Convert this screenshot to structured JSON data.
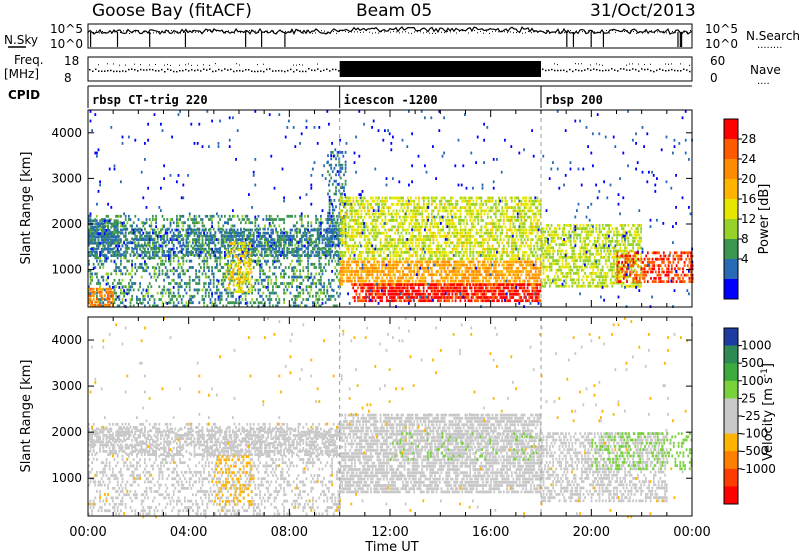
{
  "header": {
    "station": "Goose Bay (fitACF)",
    "beam": "Beam 05",
    "date": "31/Oct/2013"
  },
  "nsky_panel": {
    "left_label": "N.Sky",
    "left_ticks": [
      "10^5",
      "10^0"
    ],
    "right_ticks": [
      "10^5",
      "10^0"
    ],
    "right_label": "N.Search",
    "right_legend": "........"
  },
  "freq_panel": {
    "left_label_1": "Freq.",
    "left_label_2": "[MHz]",
    "left_ticks": [
      "18",
      "8"
    ],
    "right_ticks": [
      "60",
      "0"
    ],
    "right_label": "Nave",
    "right_legend": "...."
  },
  "cpid_panel": {
    "label": "CPID",
    "programs": [
      {
        "name": "rbsp CT-trig 220",
        "start_hour": 0
      },
      {
        "name": "icescon -1200",
        "start_hour": 10
      },
      {
        "name": "rbsp 200",
        "start_hour": 18
      }
    ]
  },
  "power_colorbar": {
    "label": "Power [dB]",
    "ticks": [
      "28",
      "24",
      "20",
      "16",
      "12",
      "8",
      "4"
    ],
    "colors": [
      "#ff0000",
      "#ff5a00",
      "#ff8c00",
      "#ffb400",
      "#e6e600",
      "#96d228",
      "#3c9650",
      "#286ab4",
      "#0000ff"
    ]
  },
  "velocity_colorbar": {
    "label": "Velocity [m s",
    "label_sup": "-1",
    "label_end": "]",
    "ticks": [
      "1000",
      "500",
      "100",
      "25",
      "-25",
      "-100",
      "-500",
      "-1000"
    ],
    "colors": [
      "#1e3ca0",
      "#2d8a55",
      "#3caa3c",
      "#78d23c",
      "#c8c8c8",
      "#c8c8c8",
      "#ffb400",
      "#ff8000",
      "#ff3c00",
      "#ff0000"
    ]
  },
  "chart_data": [
    {
      "type": "heatmap",
      "quantity": "Power",
      "ylabel": "Slant Range [km]",
      "yticks": [
        "1000",
        "2000",
        "3000",
        "4000"
      ],
      "ylim": [
        180,
        4500
      ],
      "xlim": [
        0,
        24
      ],
      "xticks": [
        "00:00",
        "04:00",
        "08:00",
        "12:00",
        "16:00",
        "20:00",
        "00:00"
      ],
      "scale_min": 0,
      "scale_max": 30,
      "regions": [
        {
          "t": [
            0.0,
            10.0
          ],
          "r": [
            200,
            2200
          ],
          "level": 8,
          "density": 0.35
        },
        {
          "t": [
            0.0,
            10.0
          ],
          "r": [
            1300,
            1900
          ],
          "level": 6,
          "density": 0.55
        },
        {
          "t": [
            0.0,
            1.2
          ],
          "r": [
            1600,
            2100
          ],
          "level": 6,
          "density": 0.85
        },
        {
          "t": [
            0.0,
            1.0
          ],
          "r": [
            200,
            600
          ],
          "level": 22,
          "density": 0.6
        },
        {
          "t": [
            5.5,
            6.5
          ],
          "r": [
            500,
            1600
          ],
          "level": 16,
          "density": 0.45
        },
        {
          "t": [
            9.5,
            10.2
          ],
          "r": [
            1500,
            3600
          ],
          "level": 6,
          "density": 0.4
        },
        {
          "t": [
            10.0,
            18.0
          ],
          "r": [
            1200,
            2600
          ],
          "level": 14,
          "density": 0.6
        },
        {
          "t": [
            10.0,
            18.0
          ],
          "r": [
            700,
            1200
          ],
          "level": 20,
          "density": 0.7
        },
        {
          "t": [
            10.5,
            18.0
          ],
          "r": [
            300,
            700
          ],
          "level": 28,
          "density": 0.75
        },
        {
          "t": [
            18.0,
            22.0
          ],
          "r": [
            600,
            2000
          ],
          "level": 13,
          "density": 0.6
        },
        {
          "t": [
            21.0,
            24.0
          ],
          "r": [
            700,
            1400
          ],
          "level": 26,
          "density": 0.5
        },
        {
          "t": [
            0.0,
            24.0
          ],
          "r": [
            180,
            4500
          ],
          "level": 3,
          "density": 0.02
        }
      ],
      "colorbar_label": "Power [dB]"
    },
    {
      "type": "heatmap",
      "quantity": "Velocity",
      "ylabel": "Slant Range [km]",
      "xlabel": "Time UT",
      "yticks": [
        "1000",
        "2000",
        "3000",
        "4000"
      ],
      "ylim": [
        180,
        4500
      ],
      "xlim": [
        0,
        24
      ],
      "xticks": [
        "00:00",
        "04:00",
        "08:00",
        "12:00",
        "16:00",
        "20:00",
        "00:00"
      ],
      "scale_min": -1000,
      "scale_max": 1000,
      "regions": [
        {
          "t": [
            0.0,
            10.0
          ],
          "r": [
            200,
            2200
          ],
          "level": 0,
          "density": 0.3
        },
        {
          "t": [
            0.0,
            10.0
          ],
          "r": [
            1500,
            2100
          ],
          "level": 0,
          "density": 0.55
        },
        {
          "t": [
            5.0,
            6.5
          ],
          "r": [
            400,
            1500
          ],
          "level": -300,
          "density": 0.25
        },
        {
          "t": [
            10.0,
            18.0
          ],
          "r": [
            700,
            2400
          ],
          "level": 0,
          "density": 0.7
        },
        {
          "t": [
            12.0,
            18.0
          ],
          "r": [
            1400,
            2000
          ],
          "level": 200,
          "density": 0.2
        },
        {
          "t": [
            18.0,
            23.0
          ],
          "r": [
            500,
            2000
          ],
          "level": 0,
          "density": 0.5
        },
        {
          "t": [
            20.0,
            24.0
          ],
          "r": [
            1200,
            2000
          ],
          "level": 300,
          "density": 0.25
        },
        {
          "t": [
            0.0,
            24.0
          ],
          "r": [
            180,
            4500
          ],
          "level": -200,
          "density": 0.015
        }
      ],
      "colorbar_label": "Velocity [m s-1]"
    }
  ]
}
